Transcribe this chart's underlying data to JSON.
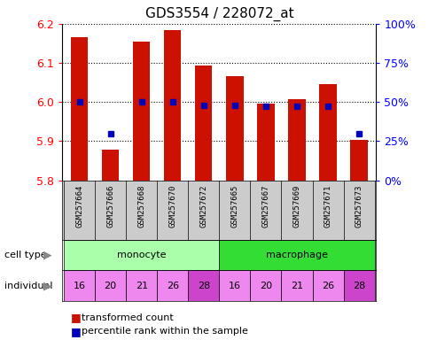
{
  "title": "GDS3554 / 228072_at",
  "samples": [
    "GSM257664",
    "GSM257666",
    "GSM257668",
    "GSM257670",
    "GSM257672",
    "GSM257665",
    "GSM257667",
    "GSM257669",
    "GSM257671",
    "GSM257673"
  ],
  "red_values": [
    6.165,
    5.878,
    6.155,
    6.185,
    6.093,
    6.065,
    5.997,
    6.008,
    6.045,
    5.902
  ],
  "blue_percentiles": [
    50,
    30,
    50,
    50,
    48,
    48,
    47,
    47,
    47,
    30
  ],
  "y_min": 5.8,
  "y_max": 6.2,
  "y_ticks": [
    5.8,
    5.9,
    6.0,
    6.1,
    6.2
  ],
  "right_y_ticks": [
    0,
    25,
    50,
    75,
    100
  ],
  "right_y_labels": [
    "0%",
    "25%",
    "50%",
    "75%",
    "100%"
  ],
  "cell_types": [
    {
      "label": "monocyte",
      "start": 0,
      "end": 5,
      "color": "#AAFFAA"
    },
    {
      "label": "macrophage",
      "start": 5,
      "end": 10,
      "color": "#33DD33"
    }
  ],
  "individuals": [
    "16",
    "20",
    "21",
    "26",
    "28",
    "16",
    "20",
    "21",
    "26",
    "28"
  ],
  "ind_highlight": [
    false,
    false,
    false,
    false,
    true,
    false,
    false,
    false,
    false,
    true
  ],
  "ind_color_normal": "#EE88EE",
  "ind_color_highlight": "#CC44CC",
  "bar_color": "#CC1100",
  "dot_color": "#0000BB",
  "bar_width": 0.55,
  "legend_red": "transformed count",
  "legend_blue": "percentile rank within the sample",
  "cell_type_label": "cell type",
  "individual_label": "individual",
  "sample_bg": "#CCCCCC",
  "title_fontsize": 11,
  "label_fontsize": 8,
  "tick_fontsize": 9,
  "sample_fontsize": 6.5
}
